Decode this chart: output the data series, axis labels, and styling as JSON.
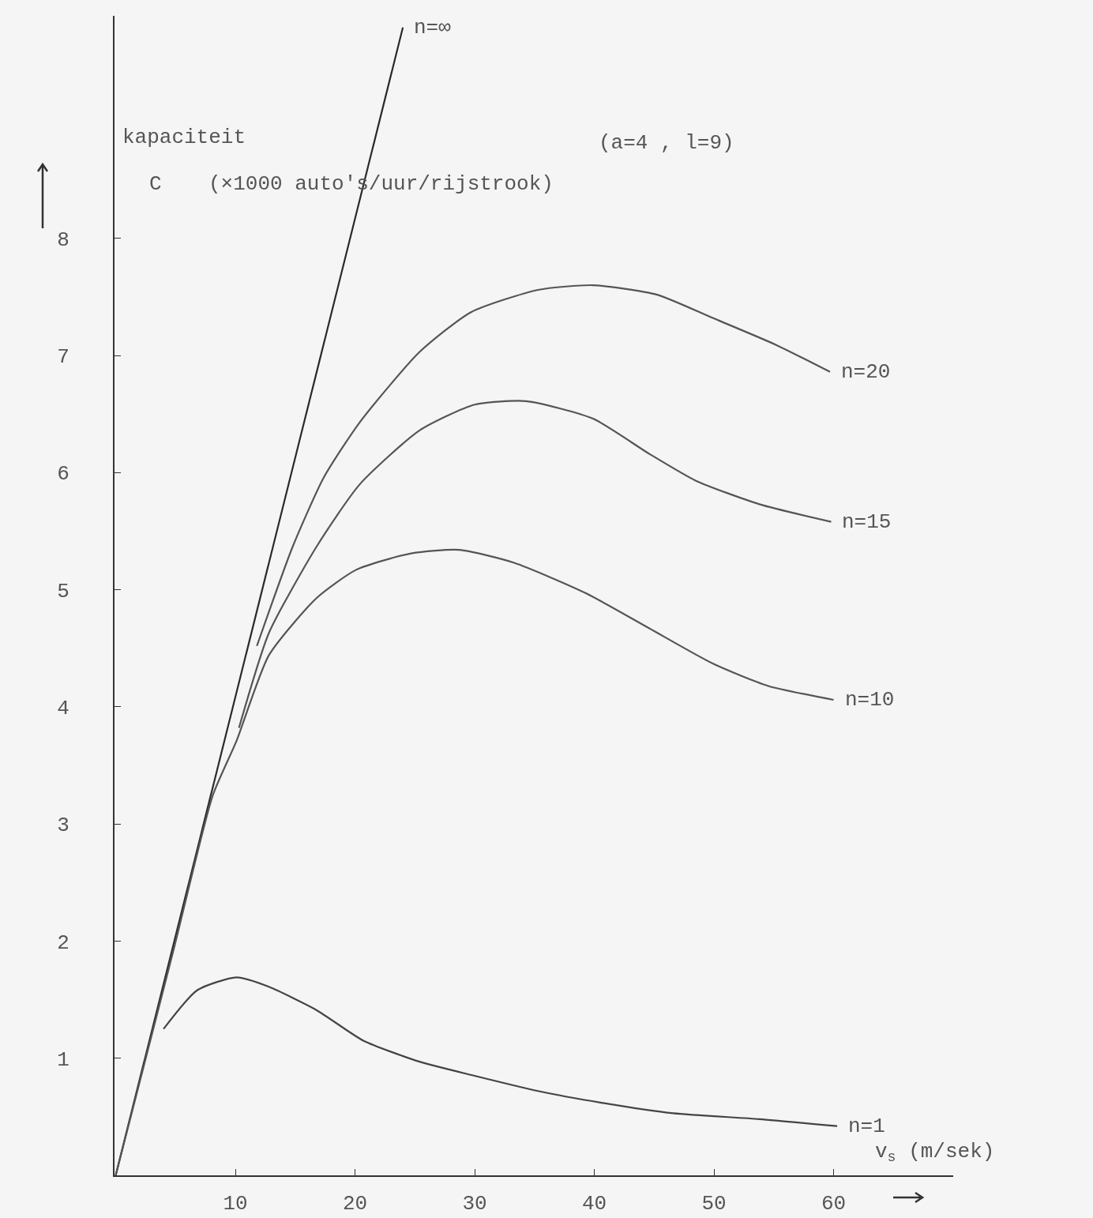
{
  "chart_data": {
    "type": "line",
    "xlabel": "v$_{s}$ (m/sek)",
    "ylabel": "kapaciteit",
    "annotations": [
      "C",
      "(×1000 auto's/uur/rijstrook)",
      "(a=4 , l=9)"
    ],
    "xlim": [
      -0.1,
      70
    ],
    "ylim": [
      0,
      9.9
    ],
    "xticks": [
      10,
      20,
      30,
      40,
      50,
      60
    ],
    "yticks": [
      1,
      2,
      3,
      4,
      5,
      6,
      7,
      8
    ],
    "grid": false,
    "legend": false,
    "marker": "none",
    "line_style": "solid",
    "series": [
      {
        "name": "n=∞",
        "color": "#2a2a2a",
        "x": [
          0,
          24
        ],
        "values": [
          0,
          9.8
        ]
      },
      {
        "name": "n=20",
        "color": "#555555",
        "x": [
          11.8,
          14.8,
          17.4,
          20.4,
          25.4,
          29.7,
          35.3,
          39.9,
          45.2,
          49.9,
          55.2,
          59.7
        ],
        "values": [
          4.52,
          5.37,
          5.96,
          6.43,
          7.03,
          7.37,
          7.56,
          7.6,
          7.52,
          7.32,
          7.09,
          6.86
        ]
      },
      {
        "name": "n=15",
        "color": "#555555",
        "x": [
          10.3,
          12.8,
          16.8,
          20.4,
          25.4,
          30,
          34.3,
          39.9,
          44.6,
          48.5,
          53.8,
          59.8
        ],
        "values": [
          3.82,
          4.63,
          5.37,
          5.9,
          6.36,
          6.58,
          6.61,
          6.46,
          6.16,
          5.93,
          5.73,
          5.58
        ]
      },
      {
        "name": "n=10",
        "color": "#555555",
        "x": [
          0,
          4.8,
          8.1,
          10.1,
          12.8,
          16.8,
          20.1,
          24.7,
          28.7,
          33.3,
          39.3,
          44.6,
          49.9,
          54.5,
          60
        ],
        "values": [
          0,
          1.91,
          3.24,
          3.71,
          4.44,
          4.93,
          5.17,
          5.31,
          5.34,
          5.23,
          4.97,
          4.67,
          4.37,
          4.18,
          4.06
        ]
      },
      {
        "name": "n=1",
        "color": "#444444",
        "x": [
          4,
          6.8,
          10.1,
          12.8,
          16.8,
          20.7,
          25.4,
          30,
          35.3,
          40.6,
          46.6,
          53.8,
          60.3
        ],
        "values": [
          1.25,
          1.58,
          1.69,
          1.61,
          1.41,
          1.15,
          0.97,
          0.85,
          0.72,
          0.62,
          0.53,
          0.48,
          0.42
        ]
      }
    ]
  }
}
